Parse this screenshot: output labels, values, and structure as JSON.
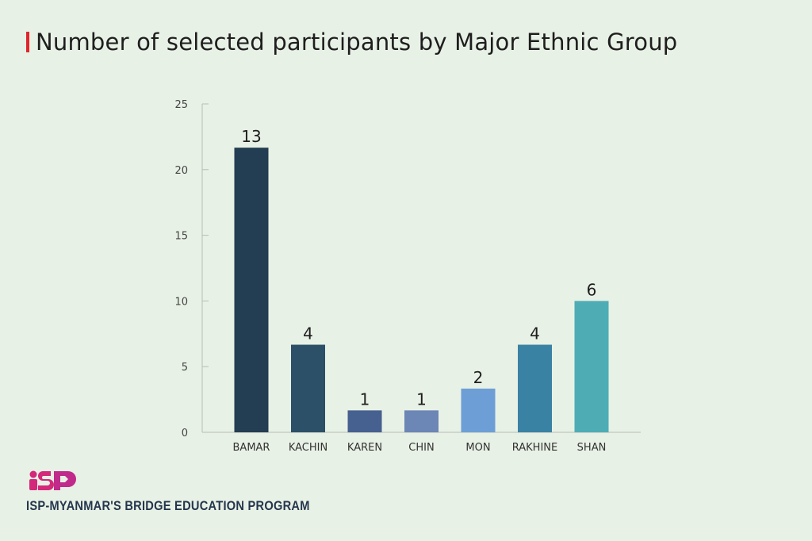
{
  "chart_data": {
    "type": "bar",
    "title": "Number of selected participants by Major Ethnic Group",
    "categories": [
      "BAMAR",
      "KACHIN",
      "KAREN",
      "CHIN",
      "MON",
      "RAKHINE",
      "SHAN"
    ],
    "values": [
      13,
      4,
      1,
      1,
      2,
      4,
      6
    ],
    "bar_heights_axis_units": [
      21.67,
      6.67,
      1.67,
      1.67,
      3.33,
      6.67,
      10
    ],
    "colors": [
      "#233d52",
      "#2b5068",
      "#46608f",
      "#6c86b5",
      "#6d9fd6",
      "#3a82a4",
      "#4eacb5"
    ],
    "yticks": [
      0,
      5,
      10,
      15,
      20,
      25
    ],
    "ylim": [
      0,
      25
    ],
    "xlabel": "",
    "ylabel": "",
    "grid": false,
    "legend": "none"
  },
  "branding": {
    "logo_text": "iSP",
    "organization": "ISP-MYANMAR'S BRIDGE EDUCATION PROGRAM",
    "accent": "#e0262a",
    "logo_color": "#d4287a"
  }
}
